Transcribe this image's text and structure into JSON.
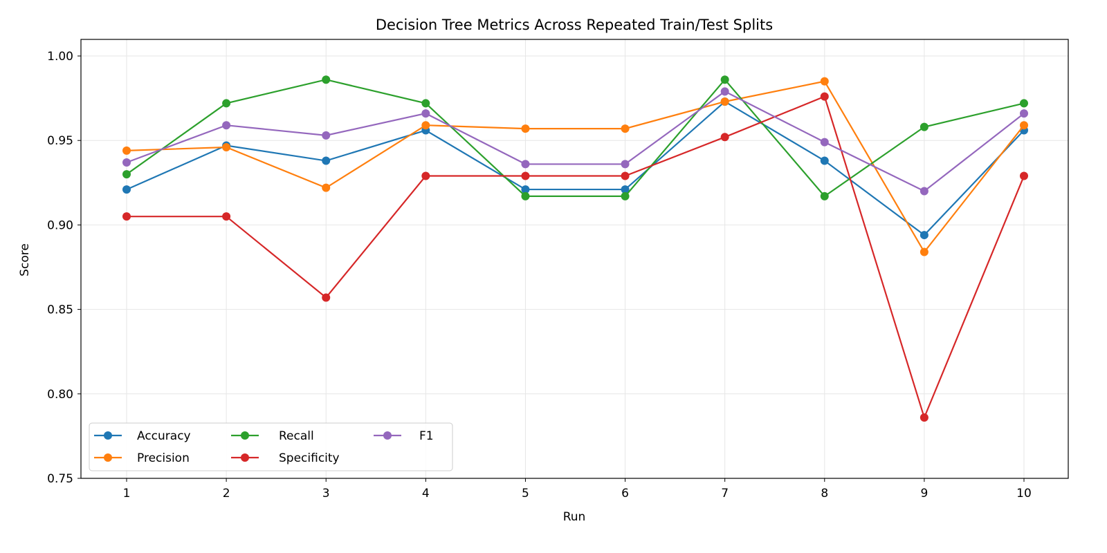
{
  "chart_data": {
    "type": "line",
    "title": "Decision Tree Metrics Across Repeated Train/Test Splits",
    "xlabel": "Run",
    "ylabel": "Score",
    "x": [
      1,
      2,
      3,
      4,
      5,
      6,
      7,
      8,
      9,
      10
    ],
    "xticks": [
      "1",
      "2",
      "3",
      "4",
      "5",
      "6",
      "7",
      "8",
      "9",
      "10"
    ],
    "ylim": [
      0.75,
      1.01
    ],
    "yticks": [
      "0.75",
      "0.80",
      "0.85",
      "0.90",
      "0.95",
      "1.00"
    ],
    "grid": true,
    "legend_placement": "lower-left",
    "series": [
      {
        "name": "Accuracy",
        "color": "#1f77b4",
        "values": [
          0.921,
          0.947,
          0.938,
          0.956,
          0.921,
          0.921,
          0.973,
          0.938,
          0.894,
          0.956
        ]
      },
      {
        "name": "Precision",
        "color": "#ff7f0e",
        "values": [
          0.944,
          0.946,
          0.922,
          0.959,
          0.957,
          0.957,
          0.973,
          0.985,
          0.884,
          0.959
        ]
      },
      {
        "name": "Recall",
        "color": "#2ca02c",
        "values": [
          0.93,
          0.972,
          0.986,
          0.972,
          0.917,
          0.917,
          0.986,
          0.917,
          0.958,
          0.972
        ]
      },
      {
        "name": "Specificity",
        "color": "#d62728",
        "values": [
          0.905,
          0.905,
          0.857,
          0.929,
          0.929,
          0.929,
          0.952,
          0.976,
          0.786,
          0.929
        ]
      },
      {
        "name": "F1",
        "color": "#9467bd",
        "values": [
          0.937,
          0.959,
          0.953,
          0.966,
          0.936,
          0.936,
          0.979,
          0.949,
          0.92,
          0.966
        ]
      }
    ]
  }
}
